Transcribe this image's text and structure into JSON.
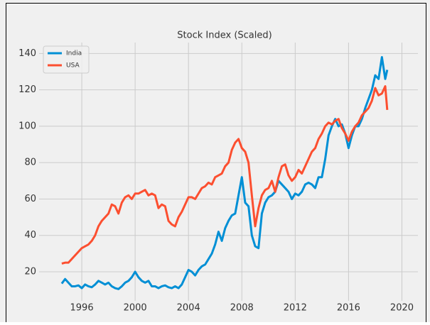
{
  "chart_data": {
    "type": "line",
    "title": "Stock Index (Scaled)",
    "x": [
      1994.5,
      1994.75,
      1995,
      1995.25,
      1995.5,
      1995.75,
      1996,
      1996.25,
      1996.5,
      1996.75,
      1997,
      1997.25,
      1997.5,
      1997.75,
      1998,
      1998.25,
      1998.5,
      1998.75,
      1999,
      1999.25,
      1999.5,
      1999.75,
      2000,
      2000.25,
      2000.5,
      2000.75,
      2001,
      2001.25,
      2001.5,
      2001.75,
      2002,
      2002.25,
      2002.5,
      2002.75,
      2003,
      2003.25,
      2003.5,
      2003.75,
      2004,
      2004.25,
      2004.5,
      2004.75,
      2005,
      2005.25,
      2005.5,
      2005.75,
      2006,
      2006.25,
      2006.5,
      2006.75,
      2007,
      2007.25,
      2007.5,
      2007.75,
      2008,
      2008.25,
      2008.5,
      2008.75,
      2009,
      2009.25,
      2009.5,
      2009.75,
      2010,
      2010.25,
      2010.5,
      2010.75,
      2011,
      2011.25,
      2011.5,
      2011.75,
      2012,
      2012.25,
      2012.5,
      2012.75,
      2013,
      2013.25,
      2013.5,
      2013.75,
      2014,
      2014.25,
      2014.5,
      2014.75,
      2015,
      2015.25,
      2015.5,
      2015.75,
      2016,
      2016.25,
      2016.5,
      2016.75,
      2017,
      2017.25,
      2017.5,
      2017.75,
      2018,
      2018.25,
      2018.5,
      2018.75,
      2018.9
    ],
    "series": [
      {
        "name": "India",
        "color": "#008fd5",
        "values": [
          13.5,
          16,
          14,
          12,
          12,
          12.5,
          11,
          13,
          12,
          11.5,
          13,
          15,
          14,
          13,
          14,
          12,
          11,
          10.5,
          12,
          14,
          15,
          17,
          20,
          17,
          15,
          14,
          15,
          12,
          12,
          11,
          12,
          12.5,
          11.5,
          11,
          12,
          11,
          13,
          17,
          21,
          20,
          18,
          21,
          23,
          24,
          27,
          30,
          35,
          42,
          37,
          44,
          48,
          51,
          52,
          62,
          72,
          58,
          56,
          40,
          34,
          33,
          52,
          58,
          61,
          62,
          64,
          70,
          68,
          66,
          64,
          60,
          63,
          62,
          64,
          68,
          69,
          68,
          66,
          72,
          72,
          82,
          95,
          100,
          104,
          100,
          101,
          96,
          88,
          95,
          100,
          100,
          104,
          110,
          115,
          120,
          128,
          126,
          138,
          126,
          131
        ]
      },
      {
        "name": "USA",
        "color": "#fc4f30",
        "values": [
          24.5,
          25,
          25,
          27,
          29,
          31,
          33,
          34,
          35,
          37,
          40,
          45,
          48,
          50,
          52,
          57,
          56,
          52,
          58,
          61,
          62,
          60,
          63,
          63,
          64,
          65,
          62,
          63,
          62,
          55,
          57,
          56,
          48,
          46,
          45,
          50,
          53,
          57,
          61,
          61,
          60,
          63,
          66,
          67,
          69,
          68,
          72,
          73,
          74,
          78,
          80,
          87,
          91,
          93,
          88,
          86,
          80,
          62,
          45,
          55,
          62,
          65,
          66,
          70,
          64,
          72,
          78,
          79,
          73,
          70,
          72,
          76,
          74,
          78,
          82,
          86,
          88,
          93,
          96,
          100,
          102,
          101,
          103,
          104,
          99,
          96,
          92,
          97,
          100,
          102,
          106,
          108,
          110,
          114,
          121,
          117,
          118,
          122,
          109
        ]
      }
    ],
    "xlim": [
      1992.8,
      2021.2
    ],
    "xticks": [
      1996,
      2000,
      2004,
      2008,
      2012,
      2016,
      2020
    ],
    "ylim": [
      4,
      146
    ],
    "yticks": [
      20,
      40,
      60,
      80,
      100,
      120,
      140
    ],
    "grid": true,
    "legend": "upper left"
  }
}
